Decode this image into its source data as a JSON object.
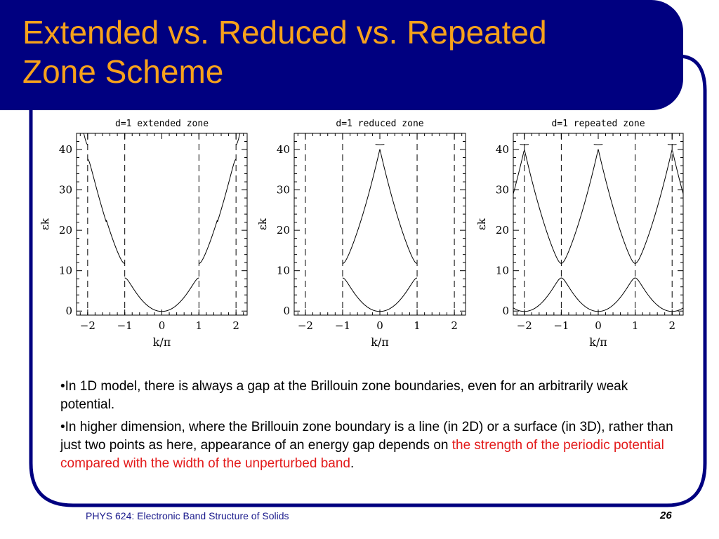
{
  "slide": {
    "title_line1": "Extended vs. Reduced vs. Repeated",
    "title_line2": "Zone Scheme",
    "bullet1": "•In 1D model, there is always a gap at the Brillouin zone boundaries, even for an arbitrarily weak potential.",
    "bullet2_pre": "•In higher dimension, where the Brillouin zone boundary is a line (in 2D) or a surface (in 3D), rather than just two points as here, appearance of an energy gap depends on ",
    "bullet2_red": "the strength of the periodic potential compared with the width of the unperturbed band",
    "bullet2_post": ".",
    "footer_left": "PHYS 624: Electronic Band Structure of Solids",
    "page_number": "26"
  },
  "colors": {
    "navy": "#000080",
    "title": "#f7a21b",
    "highlight": "#e31a1a",
    "footer": "#1a1a8c"
  },
  "chart_data": [
    {
      "type": "line",
      "title": "d=1 extended zone",
      "xlabel": "k/π",
      "ylabel": "εk",
      "xlim": [
        -2.3,
        2.3
      ],
      "ylim": [
        -1,
        44
      ],
      "xticks": [
        "-2",
        "-1",
        "0",
        "1",
        "2"
      ],
      "yticks": [
        "0",
        "10",
        "20",
        "30",
        "40"
      ],
      "zone_boundaries": [
        -2,
        -1,
        1,
        2
      ],
      "scheme": "extended",
      "band_edges_at_k1": {
        "lower": 8.2,
        "upper": 11.8
      },
      "band_edges_at_k2": {
        "lower": 37.6,
        "upper": 41.2
      }
    },
    {
      "type": "line",
      "title": "d=1 reduced zone",
      "xlabel": "k/π",
      "ylabel": "εk",
      "xlim": [
        -2.3,
        2.3
      ],
      "ylim": [
        -1,
        44
      ],
      "xticks": [
        "-2",
        "-1",
        "0",
        "1",
        "2"
      ],
      "yticks": [
        "0",
        "10",
        "20",
        "30",
        "40"
      ],
      "zone_boundaries": [
        -2,
        -1,
        1,
        2
      ],
      "scheme": "reduced",
      "band_edges_at_k1": {
        "lower": 8.2,
        "upper": 11.8
      },
      "band_edges_at_k2": {
        "lower": 37.6,
        "upper": 41.2
      }
    },
    {
      "type": "line",
      "title": "d=1 repeated zone",
      "xlabel": "k/π",
      "ylabel": "εk",
      "xlim": [
        -2.3,
        2.3
      ],
      "ylim": [
        -1,
        44
      ],
      "xticks": [
        "-2",
        "-1",
        "0",
        "1",
        "2"
      ],
      "yticks": [
        "0",
        "10",
        "20",
        "30",
        "40"
      ],
      "zone_boundaries": [
        -2,
        -1,
        1,
        2
      ],
      "scheme": "repeated",
      "band_edges_at_k1": {
        "lower": 8.2,
        "upper": 11.8
      },
      "band_edges_at_k2": {
        "lower": 37.6,
        "upper": 41.2
      }
    }
  ]
}
